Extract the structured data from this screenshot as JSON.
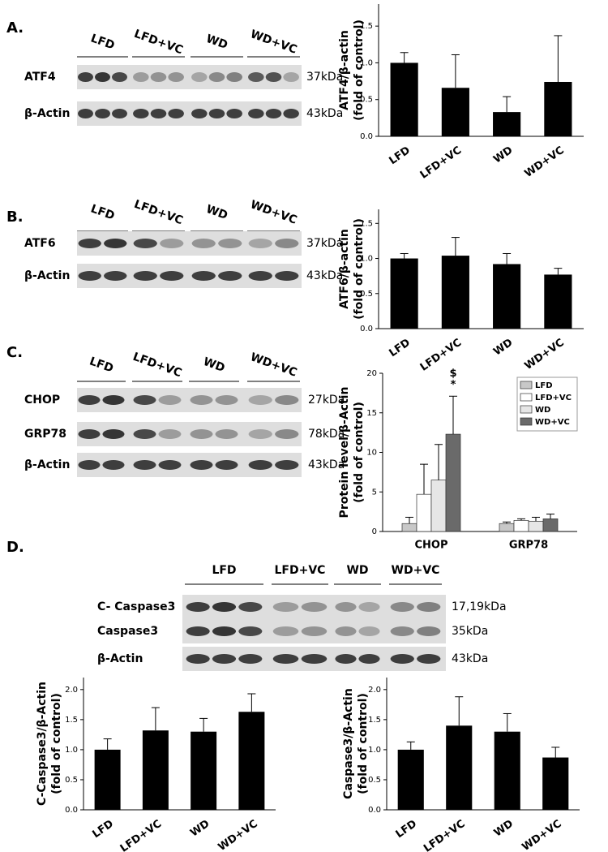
{
  "blots": [
    {
      "label": "A.",
      "groups": [
        "LFD",
        "LFD+VC",
        "WD",
        "WD+VC"
      ],
      "rows": [
        {
          "name": "ATF4",
          "size": "37kDa"
        },
        {
          "name": "β-Actin",
          "size": "43kDa"
        }
      ]
    },
    {
      "label": "B.",
      "groups": [
        "LFD",
        "LFD+VC",
        "WD",
        "WD+VC"
      ],
      "rows": [
        {
          "name": "ATF6",
          "size": "37kDa"
        },
        {
          "name": "β-Actin",
          "size": "43kDa"
        }
      ]
    },
    {
      "label": "C.",
      "groups": [
        "LFD",
        "LFD+VC",
        "WD",
        "WD+VC"
      ],
      "rows": [
        {
          "name": "CHOP",
          "size": "27kDa"
        },
        {
          "name": "GRP78",
          "size": "78kDa"
        },
        {
          "name": "β-Actin",
          "size": "43kDa"
        }
      ]
    },
    {
      "label": "D.",
      "groups": [
        "LFD",
        "LFD+VC",
        "WD",
        "WD+VC"
      ],
      "rows": [
        {
          "name": "C- Caspase3",
          "size": "17,19kDa"
        },
        {
          "name": "Caspase3",
          "size": "35kDa"
        },
        {
          "name": "β-Actin",
          "size": "43kDa"
        }
      ]
    }
  ],
  "chart_data": [
    {
      "type": "bar",
      "y_label": [
        "ATF4/β-actin",
        "(fold of control)"
      ],
      "categories": [
        "LFD",
        "LFD+VC",
        "WD",
        "WD+VC"
      ],
      "values": [
        1.0,
        0.66,
        0.33,
        0.74
      ],
      "errors": [
        0.14,
        0.45,
        0.21,
        0.63
      ],
      "color": "#000000",
      "ylim": [
        0,
        1.8
      ],
      "yticks": [
        {
          "value": 0,
          "label": "0.0"
        },
        0.5,
        {
          "value": 1,
          "label": "1.0"
        },
        1.5
      ]
    },
    {
      "type": "bar",
      "y_label": [
        "ATF6/β-actin",
        "(fold of control)"
      ],
      "categories": [
        "LFD",
        "LFD+VC",
        "WD",
        "WD+VC"
      ],
      "values": [
        1.0,
        1.04,
        0.92,
        0.77
      ],
      "errors": [
        0.07,
        0.26,
        0.15,
        0.09
      ],
      "color": "#000000",
      "ylim": [
        0,
        1.7
      ],
      "yticks": [
        {
          "value": 0,
          "label": "0.0"
        },
        0.5,
        {
          "value": 1,
          "label": "1.0"
        },
        1.5
      ]
    },
    {
      "type": "grouped-bar",
      "y_label": [
        "Protein level/β-Actin",
        "(fold of control)"
      ],
      "categories": [
        "CHOP",
        "GRP78"
      ],
      "series": [
        {
          "name": "LFD",
          "color": "#c8c8c8",
          "values": [
            1.0,
            1.0
          ],
          "errors": [
            0.8,
            0.2
          ]
        },
        {
          "name": "LFD+VC",
          "color": "#ffffff",
          "values": [
            4.7,
            1.4
          ],
          "errors": [
            3.8,
            0.2
          ]
        },
        {
          "name": "WD",
          "color": "#e6e6e6",
          "values": [
            6.5,
            1.3
          ],
          "errors": [
            4.5,
            0.5
          ]
        },
        {
          "name": "WD+VC",
          "color": "#6a6a6a",
          "values": [
            12.3,
            1.6
          ],
          "errors": [
            4.8,
            0.6
          ]
        }
      ],
      "annotations": [
        "$",
        "*"
      ],
      "legend": "upper-right",
      "ylim": [
        0,
        20
      ],
      "yticks": [
        0,
        5,
        10,
        15,
        20
      ]
    },
    {
      "type": "bar",
      "y_label": [
        "C-Caspase3/β-Actin",
        "(fold of control)"
      ],
      "categories": [
        "LFD",
        "LFD+VC",
        "WD",
        "WD+VC"
      ],
      "values": [
        1.0,
        1.32,
        1.3,
        1.63
      ],
      "errors": [
        0.18,
        0.38,
        0.22,
        0.3
      ],
      "color": "#000000",
      "ylim": [
        0,
        2.2
      ],
      "yticks": [
        {
          "value": 0,
          "label": "0.0"
        },
        0.5,
        {
          "value": 1,
          "label": "1.0"
        },
        1.5,
        {
          "value": 2,
          "label": "2.0"
        }
      ]
    },
    {
      "type": "bar",
      "y_label": [
        "Caspase3/β-Actin",
        "(fold of control)"
      ],
      "categories": [
        "LFD",
        "LFD+VC",
        "WD",
        "WD+VC"
      ],
      "values": [
        1.0,
        1.4,
        1.3,
        0.87
      ],
      "errors": [
        0.13,
        0.48,
        0.3,
        0.17
      ],
      "color": "#000000",
      "ylim": [
        0,
        2.2
      ],
      "yticks": [
        {
          "value": 0,
          "label": "0.0"
        },
        0.5,
        {
          "value": 1,
          "label": "1.0"
        },
        1.5,
        {
          "value": 2,
          "label": "2.0"
        }
      ]
    }
  ]
}
